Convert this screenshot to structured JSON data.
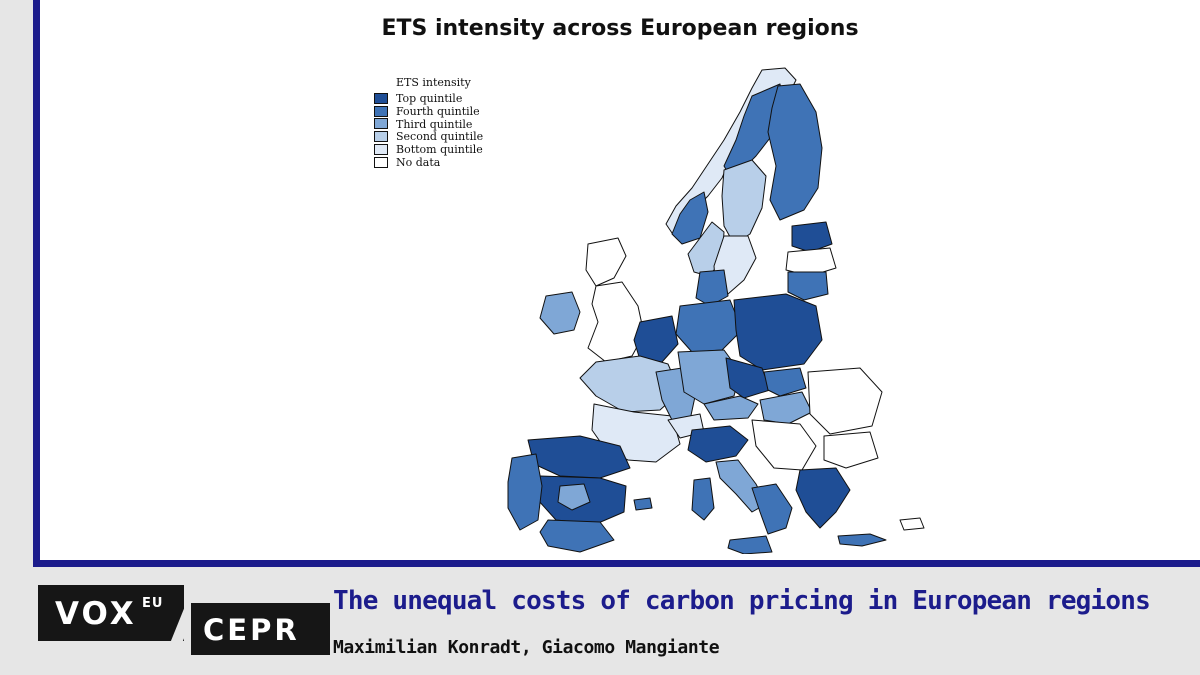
{
  "map": {
    "title": "ETS intensity across European regions",
    "legend": {
      "title": "ETS intensity",
      "items": [
        {
          "label": "Top quintile",
          "color": "#1f4e96"
        },
        {
          "label": "Fourth quintile",
          "color": "#3f73b6"
        },
        {
          "label": "Third quintile",
          "color": "#7fa7d6"
        },
        {
          "label": "Second quintile",
          "color": "#b8cfe9"
        },
        {
          "label": "Bottom quintile",
          "color": "#dfe9f6"
        },
        {
          "label": "No data",
          "color": "#ffffff"
        }
      ]
    }
  },
  "branding": {
    "logo_main": "VOX",
    "logo_sup": "EU",
    "logo_second": "CEPR"
  },
  "article": {
    "title": "The unequal costs of carbon pricing in European regions",
    "authors": "Maximilian Konradt, Giacomo Mangiante"
  },
  "colors": {
    "frame": "#1c1c8c",
    "headline": "#1c1c8c",
    "logo_background": "#161616"
  }
}
